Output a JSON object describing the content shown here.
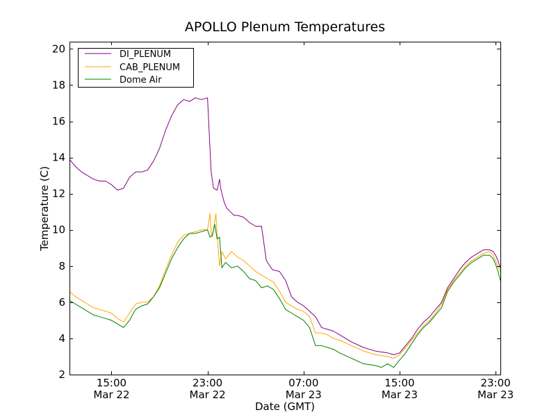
{
  "chart_data": {
    "type": "line",
    "title": "APOLLO Plenum Temperatures",
    "xlabel": "Date (GMT)",
    "ylabel": "Temperature (C)",
    "xlim": [
      11.5,
      47.4
    ],
    "ylim": [
      2,
      20.4
    ],
    "grid": false,
    "legend_position": "top-left",
    "x_unit": "hours since Mar 22 00:00 GMT",
    "x_ticks": [
      {
        "value": 15,
        "time": "15:00",
        "date": "Mar 22"
      },
      {
        "value": 23,
        "time": "23:00",
        "date": "Mar 22"
      },
      {
        "value": 31,
        "time": "07:00",
        "date": "Mar 23"
      },
      {
        "value": 39,
        "time": "15:00",
        "date": "Mar 23"
      },
      {
        "value": 47,
        "time": "23:00",
        "date": "Mar 23"
      }
    ],
    "y_ticks": [
      {
        "value": 2,
        "label": "2"
      },
      {
        "value": 4,
        "label": "4"
      },
      {
        "value": 6,
        "label": "6"
      },
      {
        "value": 8,
        "label": "8"
      },
      {
        "value": 10,
        "label": "10"
      },
      {
        "value": 12,
        "label": "12"
      },
      {
        "value": 14,
        "label": "14"
      },
      {
        "value": 16,
        "label": "16"
      },
      {
        "value": 18,
        "label": "18"
      },
      {
        "value": 20,
        "label": "20"
      }
    ],
    "series": [
      {
        "name": "DI_PLENUM",
        "color": "#800080",
        "x": [
          11.5,
          12.0,
          12.5,
          13.0,
          13.5,
          14.0,
          14.5,
          15.0,
          15.5,
          16.0,
          16.5,
          17.0,
          17.5,
          18.0,
          18.5,
          19.0,
          19.5,
          20.0,
          20.5,
          21.0,
          21.5,
          22.0,
          22.5,
          23.0,
          23.3,
          23.5,
          23.8,
          24.0,
          24.1,
          24.2,
          24.4,
          24.6,
          24.9,
          25.2,
          25.5,
          26.0,
          26.5,
          27.0,
          27.5,
          27.9,
          28.0,
          28.4,
          29.0,
          29.5,
          30.0,
          30.5,
          31.0,
          31.5,
          32.0,
          32.5,
          33.0,
          33.5,
          34.0,
          35.0,
          36.0,
          37.0,
          38.0,
          38.5,
          39.0,
          39.5,
          40.0,
          40.5,
          41.0,
          41.5,
          42.0,
          42.5,
          43.0,
          43.5,
          44.0,
          44.5,
          45.0,
          45.5,
          46.0,
          46.5,
          46.8,
          47.0,
          47.2,
          47.4
        ],
        "values": [
          13.9,
          13.5,
          13.2,
          13.0,
          12.8,
          12.7,
          12.7,
          12.5,
          12.2,
          12.3,
          12.9,
          13.2,
          13.2,
          13.3,
          13.8,
          14.5,
          15.5,
          16.3,
          16.9,
          17.2,
          17.1,
          17.3,
          17.2,
          17.3,
          13.2,
          12.3,
          12.2,
          12.8,
          12.3,
          12.0,
          11.5,
          11.2,
          11.0,
          10.8,
          10.8,
          10.7,
          10.4,
          10.2,
          10.2,
          8.3,
          8.2,
          7.8,
          7.7,
          7.2,
          6.3,
          6.0,
          5.8,
          5.5,
          5.2,
          4.6,
          4.5,
          4.4,
          4.2,
          3.8,
          3.5,
          3.3,
          3.2,
          3.1,
          3.2,
          3.6,
          4.0,
          4.5,
          4.9,
          5.2,
          5.6,
          6.0,
          6.8,
          7.3,
          7.8,
          8.2,
          8.5,
          8.7,
          8.9,
          8.9,
          8.8,
          8.6,
          8.3,
          7.9
        ]
      },
      {
        "name": "CAB_PLENUM",
        "color": "#FFA500",
        "x": [
          11.5,
          12.0,
          12.5,
          13.0,
          13.5,
          14.0,
          14.5,
          15.0,
          15.5,
          16.0,
          16.5,
          17.0,
          17.5,
          18.0,
          18.5,
          19.0,
          19.5,
          20.0,
          20.5,
          21.0,
          21.5,
          22.0,
          22.5,
          23.0,
          23.2,
          23.3,
          23.4,
          23.5,
          23.7,
          23.8,
          24.0,
          24.2,
          24.5,
          25.0,
          25.5,
          26.0,
          26.5,
          27.0,
          27.5,
          28.0,
          28.5,
          29.0,
          29.5,
          30.0,
          30.5,
          31.0,
          31.5,
          32.0,
          32.5,
          33.0,
          33.5,
          34.0,
          35.0,
          36.0,
          37.0,
          38.0,
          38.5,
          39.0,
          39.5,
          40.0,
          40.5,
          41.0,
          41.5,
          42.0,
          42.5,
          43.0,
          43.5,
          44.0,
          44.5,
          45.0,
          45.5,
          46.0,
          46.5,
          46.8,
          47.0,
          47.2,
          47.4
        ],
        "values": [
          6.6,
          6.3,
          6.1,
          5.9,
          5.7,
          5.6,
          5.5,
          5.4,
          5.1,
          4.9,
          5.4,
          5.9,
          6.0,
          6.0,
          6.3,
          6.9,
          7.8,
          8.6,
          9.3,
          9.7,
          9.8,
          9.9,
          10.0,
          10.0,
          10.9,
          9.9,
          9.6,
          10.0,
          10.9,
          9.7,
          8.0,
          8.8,
          8.4,
          8.8,
          8.5,
          8.3,
          8.0,
          7.7,
          7.5,
          7.3,
          7.1,
          6.6,
          6.0,
          5.8,
          5.6,
          5.5,
          5.2,
          4.3,
          4.3,
          4.2,
          4.0,
          3.9,
          3.6,
          3.3,
          3.1,
          3.0,
          2.9,
          3.1,
          3.5,
          3.9,
          4.3,
          4.7,
          5.0,
          5.4,
          5.9,
          6.7,
          7.2,
          7.6,
          8.0,
          8.3,
          8.5,
          8.7,
          8.8,
          8.6,
          8.3,
          8.0,
          7.7
        ]
      },
      {
        "name": "Dome Air",
        "color": "#008000",
        "x": [
          11.5,
          12.0,
          12.5,
          13.0,
          13.5,
          14.0,
          14.5,
          15.0,
          15.5,
          16.0,
          16.5,
          17.0,
          17.5,
          18.0,
          18.5,
          19.0,
          19.5,
          20.0,
          20.5,
          21.0,
          21.5,
          22.0,
          22.5,
          23.0,
          23.2,
          23.4,
          23.6,
          23.8,
          24.0,
          24.2,
          24.5,
          25.0,
          25.5,
          26.0,
          26.5,
          27.0,
          27.5,
          28.0,
          28.5,
          29.0,
          29.5,
          30.0,
          30.5,
          31.0,
          31.5,
          32.0,
          32.5,
          33.0,
          33.5,
          34.0,
          35.0,
          36.0,
          37.0,
          37.5,
          38.0,
          38.5,
          39.0,
          39.5,
          40.0,
          40.5,
          41.0,
          41.5,
          42.0,
          42.5,
          43.0,
          43.5,
          44.0,
          44.5,
          45.0,
          45.5,
          46.0,
          46.5,
          46.8,
          47.0,
          47.2,
          47.4
        ],
        "values": [
          6.1,
          5.9,
          5.7,
          5.5,
          5.3,
          5.2,
          5.1,
          5.0,
          4.8,
          4.6,
          5.0,
          5.6,
          5.8,
          5.9,
          6.3,
          6.8,
          7.6,
          8.4,
          9.0,
          9.5,
          9.8,
          9.8,
          9.9,
          10.0,
          9.6,
          9.7,
          10.3,
          9.5,
          9.6,
          7.9,
          8.2,
          7.9,
          8.0,
          7.7,
          7.3,
          7.2,
          6.8,
          6.9,
          6.7,
          6.2,
          5.6,
          5.4,
          5.2,
          5.0,
          4.6,
          3.6,
          3.6,
          3.5,
          3.4,
          3.2,
          2.9,
          2.6,
          2.5,
          2.4,
          2.6,
          2.4,
          2.8,
          3.2,
          3.7,
          4.2,
          4.6,
          4.9,
          5.3,
          5.7,
          6.6,
          7.1,
          7.5,
          7.9,
          8.2,
          8.4,
          8.6,
          8.6,
          8.4,
          8.1,
          7.7,
          7.2
        ]
      }
    ]
  }
}
